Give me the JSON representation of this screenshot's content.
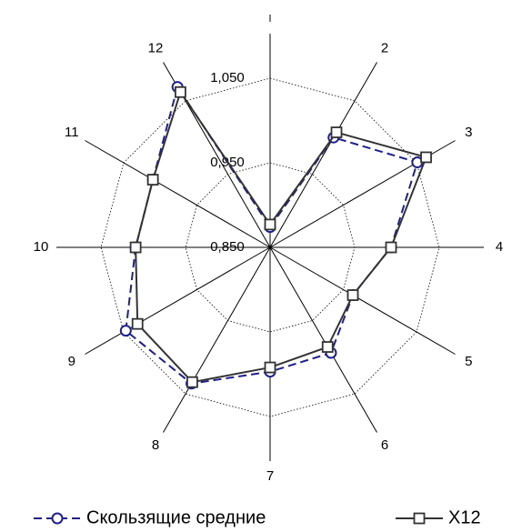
{
  "chart_data": {
    "type": "radar",
    "categories": [
      null,
      "2",
      "3",
      "4",
      "5",
      "6",
      "7",
      "8",
      "9",
      "10",
      "11",
      "12"
    ],
    "ylim": [
      0.85,
      1.05
    ],
    "yticks": [
      {
        "value": 0.85,
        "label": "0,850"
      },
      {
        "value": 0.95,
        "label": "0,950"
      },
      {
        "value": 1.05,
        "label": "1,050"
      }
    ],
    "series": [
      {
        "name": "Скользящие средние",
        "color": "#1f1f8f",
        "marker": "circle",
        "dash": true,
        "values": [
          0.874,
          1.0,
          1.051,
          0.993,
          0.963,
          0.994,
          0.997,
          1.036,
          1.047,
          1.009,
          1.01,
          1.069
        ]
      },
      {
        "name": "X12",
        "color": "#333333",
        "marker": "square",
        "dash": false,
        "values": [
          0.877,
          1.007,
          1.063,
          0.993,
          0.963,
          0.986,
          0.992,
          1.034,
          1.031,
          1.009,
          1.01,
          1.062
        ]
      }
    ]
  }
}
